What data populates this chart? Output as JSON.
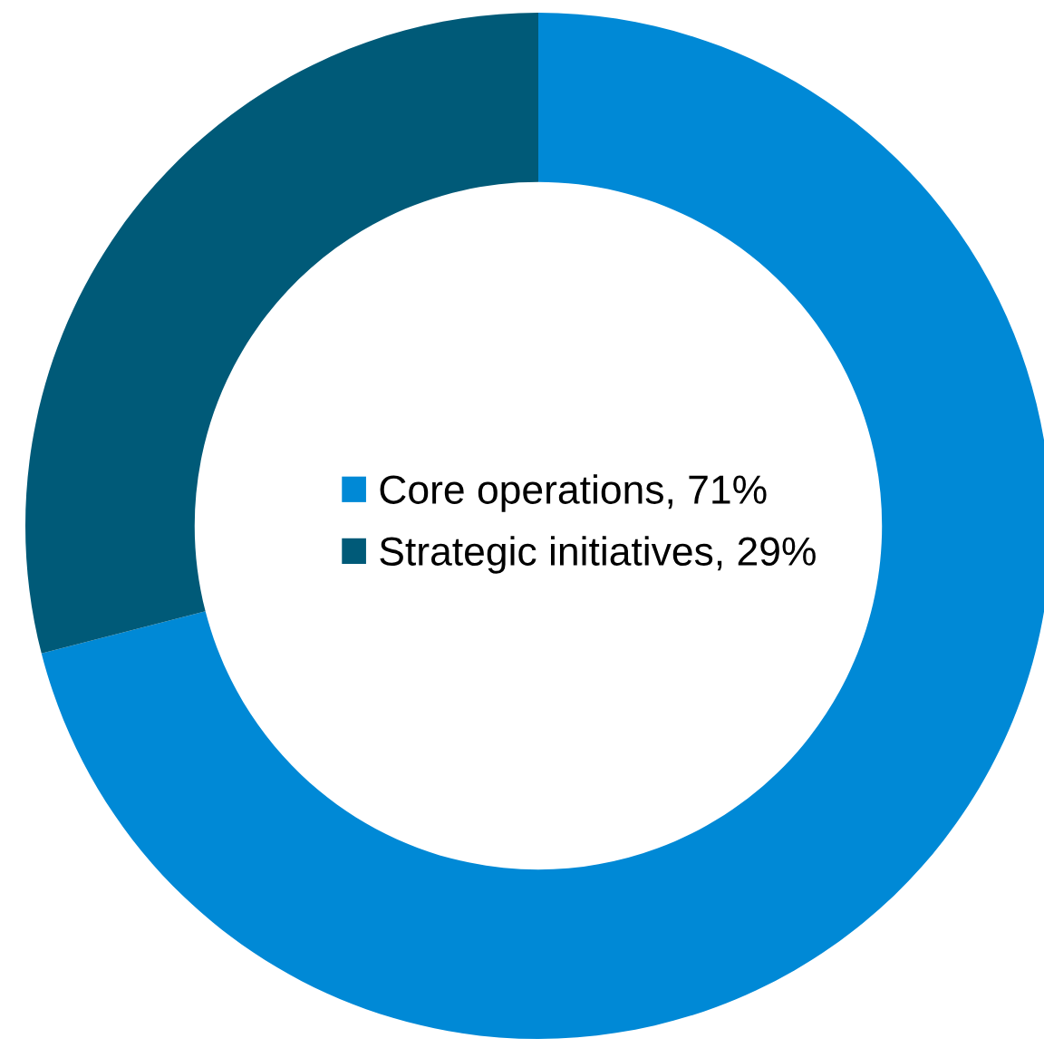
{
  "chart_data": {
    "type": "donut",
    "categories": [
      "Core operations, 71%",
      "Strategic initiatives, 29%"
    ],
    "values": [
      71,
      29
    ],
    "colors": [
      "#0089d6",
      "#005a78"
    ],
    "legend": "center"
  }
}
